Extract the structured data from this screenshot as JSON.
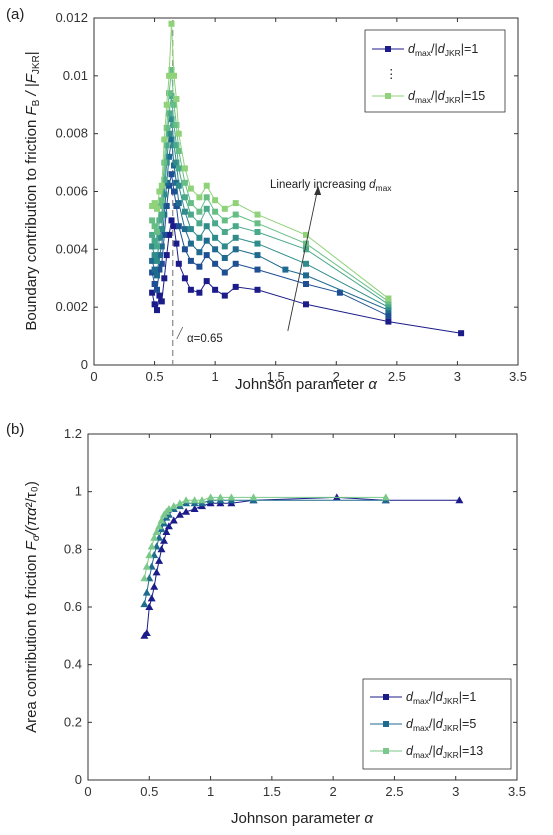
{
  "colors": {
    "s1": "#1b1b8a",
    "s5": "#1f6a8f",
    "s13": "#7ac98a",
    "s15": "#8fd27a",
    "axis": "#333333",
    "guide": "#888888"
  },
  "chart_data": [
    {
      "panel_label": "(a)",
      "type": "line",
      "xlabel": "Johnson parameter",
      "xlabel_symbol": "α",
      "ylabel": "Boundary contribution to friction",
      "ylabel_sym_a": "F",
      "ylabel_sub_a": "B",
      "ylabel_sym_b": " / |F",
      "ylabel_sub_b": "JKR",
      "ylabel_end": "|",
      "xlim": [
        0,
        3.5
      ],
      "ylim": [
        0,
        0.012
      ],
      "xticks": [
        "0",
        "0.5",
        "1",
        "1.5",
        "2",
        "2.5",
        "3",
        "3.5"
      ],
      "yticks": [
        "0",
        "0.002",
        "0.004",
        "0.006",
        "0.008",
        "0.01",
        "0.012"
      ],
      "reference_line": {
        "x": 0.65,
        "label": "α=0.65"
      },
      "arrow_annotation": {
        "text": "Linearly increasing ",
        "text_sym": "d",
        "text_sub": "max",
        "from": [
          1.6,
          0.0036
        ],
        "to": [
          1.85,
          0.0065
        ]
      },
      "legend": {
        "placement": "top-right",
        "ellipsis": "⋮",
        "entries": [
          {
            "sym": "d",
            "sub": "max",
            "mid": "/|",
            "sym2": "d",
            "sub2": "JKR",
            "end": "|=1",
            "color": "#1b1b8a"
          },
          {
            "sym": "d",
            "sub": "max",
            "mid": "/|",
            "sym2": "d",
            "sub2": "JKR",
            "end": "|=15",
            "color": "#8fd27a"
          }
        ]
      },
      "series": [
        {
          "color": "#1b1b8a",
          "x": [
            0.48,
            0.5,
            0.52,
            0.54,
            0.56,
            0.58,
            0.6,
            0.62,
            0.64,
            0.66,
            0.68,
            0.7,
            0.75,
            0.8,
            0.87,
            0.93,
            1.0,
            1.08,
            1.17,
            1.35,
            1.75,
            2.43,
            3.03
          ],
          "y": [
            0.0025,
            0.0021,
            0.0019,
            0.0024,
            0.0022,
            0.003,
            0.0038,
            0.0045,
            0.005,
            0.0048,
            0.0042,
            0.0035,
            0.003,
            0.0026,
            0.0025,
            0.0029,
            0.0026,
            0.0024,
            0.0027,
            0.0026,
            0.0021,
            0.0015,
            0.0011
          ]
        },
        {
          "color": "#1e4f92",
          "x": [
            0.48,
            0.5,
            0.52,
            0.54,
            0.56,
            0.58,
            0.6,
            0.62,
            0.64,
            0.66,
            0.68,
            0.7,
            0.75,
            0.8,
            0.87,
            0.93,
            1.0,
            1.08,
            1.17,
            1.35,
            1.75,
            2.03,
            2.43
          ],
          "y": [
            0.0032,
            0.0028,
            0.0026,
            0.0033,
            0.0035,
            0.0045,
            0.0055,
            0.0062,
            0.0066,
            0.006,
            0.0055,
            0.0048,
            0.004,
            0.0036,
            0.0034,
            0.0038,
            0.0035,
            0.0032,
            0.0035,
            0.0033,
            0.0028,
            0.0025,
            0.0017
          ]
        },
        {
          "color": "#1f6a8f",
          "x": [
            0.48,
            0.5,
            0.52,
            0.54,
            0.56,
            0.58,
            0.6,
            0.62,
            0.64,
            0.66,
            0.68,
            0.7,
            0.75,
            0.8,
            0.87,
            0.93,
            1.0,
            1.08,
            1.17,
            1.35,
            1.58,
            1.75,
            2.43
          ],
          "y": [
            0.0036,
            0.0033,
            0.0031,
            0.0038,
            0.0041,
            0.0052,
            0.0063,
            0.0072,
            0.0078,
            0.0069,
            0.0063,
            0.0056,
            0.0047,
            0.0042,
            0.0039,
            0.0043,
            0.004,
            0.0037,
            0.004,
            0.0038,
            0.0033,
            0.0031,
            0.0019
          ]
        },
        {
          "color": "#2f8c8a",
          "x": [
            0.48,
            0.5,
            0.52,
            0.54,
            0.56,
            0.58,
            0.6,
            0.62,
            0.64,
            0.66,
            0.68,
            0.7,
            0.75,
            0.8,
            0.87,
            0.93,
            1.0,
            1.08,
            1.17,
            1.35,
            1.75,
            2.43
          ],
          "y": [
            0.0041,
            0.0038,
            0.0036,
            0.0044,
            0.0047,
            0.0059,
            0.007,
            0.008,
            0.0085,
            0.0076,
            0.007,
            0.0062,
            0.0053,
            0.0047,
            0.0044,
            0.0048,
            0.0044,
            0.0041,
            0.0044,
            0.0042,
            0.0035,
            0.002
          ]
        },
        {
          "color": "#4aa98a",
          "x": [
            0.48,
            0.5,
            0.52,
            0.54,
            0.56,
            0.58,
            0.6,
            0.62,
            0.64,
            0.66,
            0.68,
            0.7,
            0.75,
            0.8,
            0.87,
            0.93,
            1.0,
            1.08,
            1.17,
            1.35,
            1.75,
            2.43
          ],
          "y": [
            0.0045,
            0.0043,
            0.0041,
            0.005,
            0.0052,
            0.0064,
            0.0076,
            0.0087,
            0.0093,
            0.0083,
            0.0076,
            0.0068,
            0.0058,
            0.0052,
            0.0049,
            0.0054,
            0.0049,
            0.0046,
            0.0048,
            0.0046,
            0.004,
            0.0021
          ]
        },
        {
          "color": "#66be85",
          "x": [
            0.48,
            0.5,
            0.52,
            0.54,
            0.56,
            0.58,
            0.6,
            0.62,
            0.64,
            0.66,
            0.68,
            0.7,
            0.75,
            0.8,
            0.87,
            0.93,
            1.0,
            1.08,
            1.17,
            1.35,
            1.75,
            2.43
          ],
          "y": [
            0.005,
            0.0048,
            0.0046,
            0.0055,
            0.0057,
            0.007,
            0.0082,
            0.0094,
            0.0102,
            0.009,
            0.0083,
            0.0074,
            0.0063,
            0.0056,
            0.0053,
            0.0058,
            0.0053,
            0.005,
            0.0052,
            0.0049,
            0.0042,
            0.0022
          ]
        },
        {
          "color": "#8fd27a",
          "x": [
            0.48,
            0.5,
            0.52,
            0.54,
            0.56,
            0.58,
            0.6,
            0.62,
            0.64,
            0.66,
            0.68,
            0.7,
            0.75,
            0.8,
            0.87,
            0.93,
            1.0,
            1.08,
            1.17,
            1.35,
            1.75,
            2.43
          ],
          "y": [
            0.0055,
            0.0056,
            0.0054,
            0.006,
            0.0062,
            0.0078,
            0.009,
            0.01,
            0.0118,
            0.01,
            0.0092,
            0.008,
            0.0068,
            0.0061,
            0.0058,
            0.0062,
            0.0057,
            0.0054,
            0.0056,
            0.0052,
            0.0045,
            0.0023
          ]
        }
      ]
    },
    {
      "panel_label": "(b)",
      "type": "line",
      "xlabel": "Johnson parameter",
      "xlabel_symbol": "α",
      "ylabel": "Area contribution to friction",
      "ylabel_sym_a": "F",
      "ylabel_sub_a": "σ",
      "ylabel_sym_b": "/(πα",
      "ylabel_sub_b": "",
      "ylabel_end": "²/τ₀)",
      "xlim": [
        0,
        3.5
      ],
      "ylim": [
        0,
        1.2
      ],
      "xticks": [
        "0",
        "0.5",
        "1",
        "1.5",
        "2",
        "2.5",
        "3",
        "3.5"
      ],
      "yticks": [
        "0",
        "0.2",
        "0.4",
        "0.6",
        "0.8",
        "1",
        "1.2"
      ],
      "legend": {
        "placement": "bottom-right",
        "entries": [
          {
            "sym": "d",
            "sub": "max",
            "mid": "/|",
            "sym2": "d",
            "sub2": "JKR",
            "end": "|=1",
            "color": "#1b1b8a"
          },
          {
            "sym": "d",
            "sub": "max",
            "mid": "/|",
            "sym2": "d",
            "sub2": "JKR",
            "end": "|=5",
            "color": "#1f6a8f"
          },
          {
            "sym": "d",
            "sub": "max",
            "mid": "/|",
            "sym2": "d",
            "sub2": "JKR",
            "end": "|=13",
            "color": "#7ac98a"
          }
        ]
      },
      "series": [
        {
          "color": "#1b1b8a",
          "x": [
            0.46,
            0.48,
            0.5,
            0.52,
            0.54,
            0.56,
            0.58,
            0.6,
            0.62,
            0.64,
            0.66,
            0.7,
            0.75,
            0.8,
            0.87,
            0.93,
            1.0,
            1.08,
            1.17,
            1.35,
            2.03,
            2.43,
            3.03
          ],
          "y": [
            0.5,
            0.51,
            0.6,
            0.63,
            0.67,
            0.72,
            0.76,
            0.8,
            0.83,
            0.86,
            0.88,
            0.9,
            0.92,
            0.93,
            0.94,
            0.95,
            0.96,
            0.96,
            0.96,
            0.97,
            0.98,
            0.97,
            0.97
          ]
        },
        {
          "color": "#1f6a8f",
          "x": [
            0.46,
            0.48,
            0.5,
            0.52,
            0.54,
            0.56,
            0.58,
            0.6,
            0.62,
            0.64,
            0.66,
            0.7,
            0.75,
            0.8,
            0.87,
            0.93,
            1.0,
            1.08,
            1.17,
            1.35,
            2.43
          ],
          "y": [
            0.61,
            0.65,
            0.7,
            0.74,
            0.78,
            0.81,
            0.84,
            0.87,
            0.89,
            0.91,
            0.92,
            0.94,
            0.95,
            0.96,
            0.96,
            0.96,
            0.97,
            0.97,
            0.97,
            0.97,
            0.97
          ]
        },
        {
          "color": "#7ac98a",
          "x": [
            0.46,
            0.48,
            0.5,
            0.52,
            0.54,
            0.56,
            0.58,
            0.6,
            0.62,
            0.64,
            0.66,
            0.7,
            0.75,
            0.8,
            0.87,
            0.93,
            1.0,
            1.08,
            1.17,
            1.35,
            2.43
          ],
          "y": [
            0.7,
            0.74,
            0.78,
            0.81,
            0.84,
            0.86,
            0.88,
            0.9,
            0.92,
            0.93,
            0.94,
            0.95,
            0.96,
            0.97,
            0.97,
            0.97,
            0.98,
            0.98,
            0.98,
            0.98,
            0.98
          ]
        }
      ]
    }
  ]
}
